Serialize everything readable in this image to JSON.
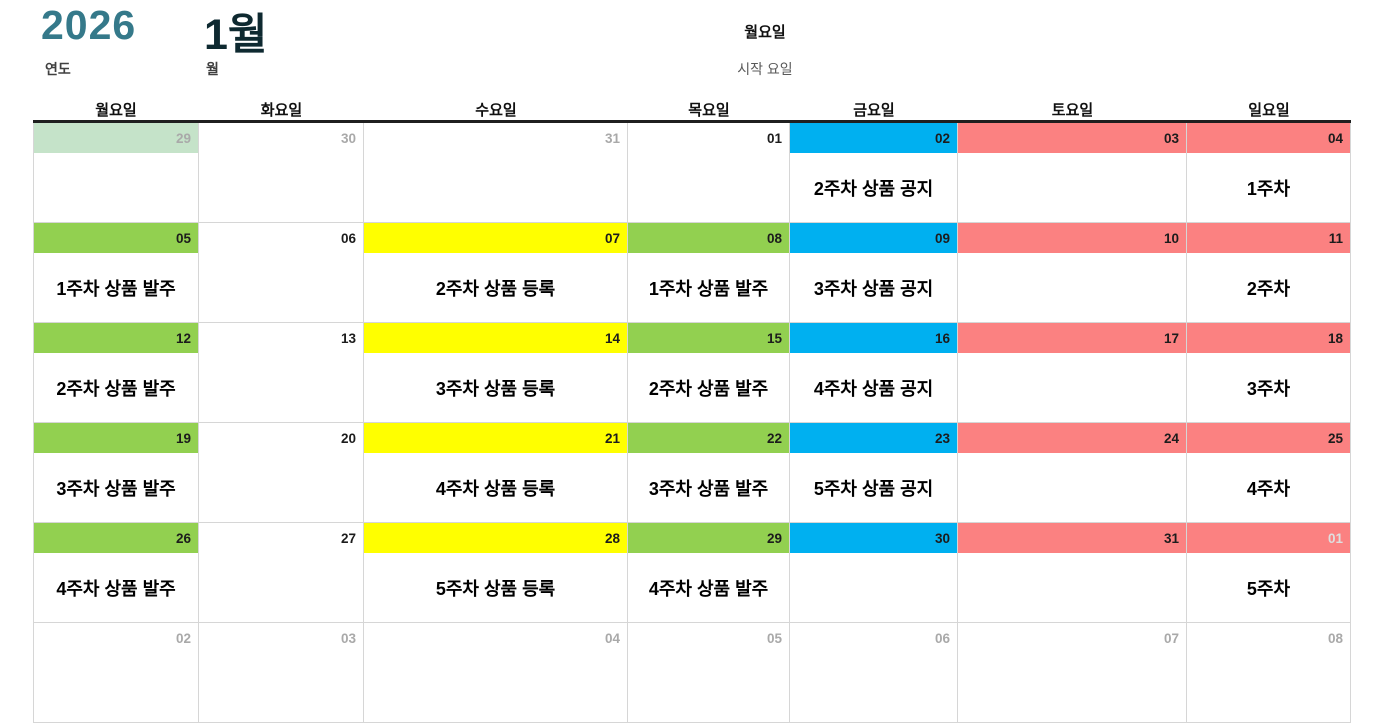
{
  "header": {
    "year": "2026",
    "year_label": "연도",
    "month": "1월",
    "month_label": "월",
    "start_day": "월요일",
    "start_day_label": "시작 요일"
  },
  "colors": {
    "accent_teal": "#35798a",
    "month_dark": "#0e2930",
    "green": "#92d050",
    "pale_green": "#c5e3c9",
    "yellow": "#ffff00",
    "blue": "#00b0f0",
    "red": "#fb8181"
  },
  "calendar": {
    "day_headers": [
      "월요일",
      "화요일",
      "수요일",
      "목요일",
      "금요일",
      "토요일",
      "일요일"
    ],
    "weeks": [
      {
        "days": [
          {
            "num": "29",
            "color": "pale_green",
            "muted": true,
            "text": ""
          },
          {
            "num": "30",
            "color": "",
            "muted": true,
            "text": ""
          },
          {
            "num": "31",
            "color": "",
            "muted": true,
            "text": ""
          },
          {
            "num": "01",
            "color": "",
            "muted": false,
            "text": ""
          },
          {
            "num": "02",
            "color": "blue",
            "muted": false,
            "text": "2주차 상품 공지"
          },
          {
            "num": "03",
            "color": "red",
            "muted": false,
            "text": ""
          },
          {
            "num": "04",
            "color": "red",
            "muted": false,
            "text": "1주차"
          }
        ]
      },
      {
        "days": [
          {
            "num": "05",
            "color": "green",
            "muted": false,
            "text": "1주차 상품 발주"
          },
          {
            "num": "06",
            "color": "",
            "muted": false,
            "text": ""
          },
          {
            "num": "07",
            "color": "yellow",
            "muted": false,
            "text": "2주차 상품 등록"
          },
          {
            "num": "08",
            "color": "green",
            "muted": false,
            "text": "1주차 상품 발주"
          },
          {
            "num": "09",
            "color": "blue",
            "muted": false,
            "text": "3주차 상품 공지"
          },
          {
            "num": "10",
            "color": "red",
            "muted": false,
            "text": ""
          },
          {
            "num": "11",
            "color": "red",
            "muted": false,
            "text": "2주차"
          }
        ]
      },
      {
        "days": [
          {
            "num": "12",
            "color": "green",
            "muted": false,
            "text": "2주차 상품 발주"
          },
          {
            "num": "13",
            "color": "",
            "muted": false,
            "text": ""
          },
          {
            "num": "14",
            "color": "yellow",
            "muted": false,
            "text": "3주차 상품 등록"
          },
          {
            "num": "15",
            "color": "green",
            "muted": false,
            "text": "2주차 상품 발주"
          },
          {
            "num": "16",
            "color": "blue",
            "muted": false,
            "text": "4주차 상품 공지"
          },
          {
            "num": "17",
            "color": "red",
            "muted": false,
            "text": ""
          },
          {
            "num": "18",
            "color": "red",
            "muted": false,
            "text": "3주차"
          }
        ]
      },
      {
        "days": [
          {
            "num": "19",
            "color": "green",
            "muted": false,
            "text": "3주차 상품 발주"
          },
          {
            "num": "20",
            "color": "",
            "muted": false,
            "text": ""
          },
          {
            "num": "21",
            "color": "yellow",
            "muted": false,
            "text": "4주차 상품 등록"
          },
          {
            "num": "22",
            "color": "green",
            "muted": false,
            "text": "3주차 상품 발주"
          },
          {
            "num": "23",
            "color": "blue",
            "muted": false,
            "text": "5주차 상품 공지"
          },
          {
            "num": "24",
            "color": "red",
            "muted": false,
            "text": ""
          },
          {
            "num": "25",
            "color": "red",
            "muted": false,
            "text": "4주차"
          }
        ]
      },
      {
        "days": [
          {
            "num": "26",
            "color": "green",
            "muted": false,
            "text": "4주차 상품 발주"
          },
          {
            "num": "27",
            "color": "",
            "muted": false,
            "text": ""
          },
          {
            "num": "28",
            "color": "yellow",
            "muted": false,
            "text": "5주차 상품 등록"
          },
          {
            "num": "29",
            "color": "green",
            "muted": false,
            "text": "4주차 상품 발주"
          },
          {
            "num": "30",
            "color": "blue",
            "muted": false,
            "text": ""
          },
          {
            "num": "31",
            "color": "red",
            "muted": false,
            "text": ""
          },
          {
            "num": "01",
            "color": "red",
            "muted": true,
            "text": "5주차"
          }
        ]
      },
      {
        "days": [
          {
            "num": "02",
            "color": "",
            "muted": true,
            "text": ""
          },
          {
            "num": "03",
            "color": "",
            "muted": true,
            "text": ""
          },
          {
            "num": "04",
            "color": "",
            "muted": true,
            "text": ""
          },
          {
            "num": "05",
            "color": "",
            "muted": true,
            "text": ""
          },
          {
            "num": "06",
            "color": "",
            "muted": true,
            "text": ""
          },
          {
            "num": "07",
            "color": "",
            "muted": true,
            "text": ""
          },
          {
            "num": "08",
            "color": "",
            "muted": true,
            "text": ""
          }
        ]
      }
    ]
  }
}
